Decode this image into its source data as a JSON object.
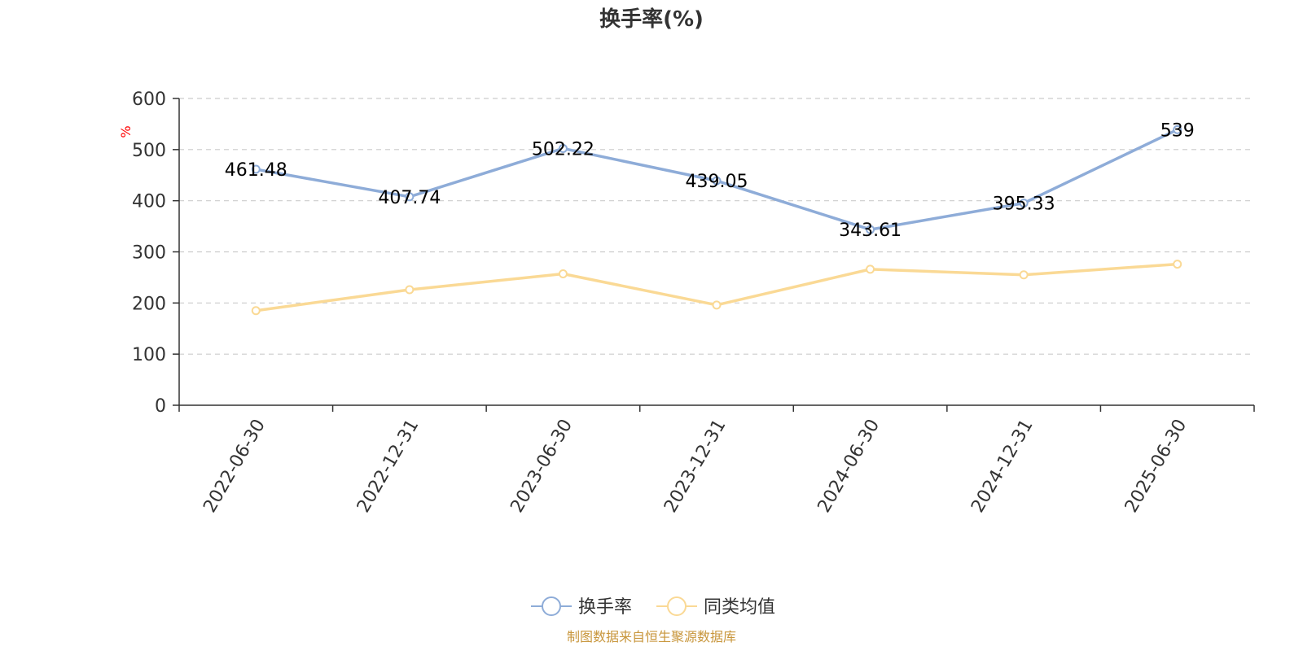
{
  "chart_data": {
    "type": "line",
    "title": "换手率(%)",
    "ylabel": "%",
    "xlabel": "",
    "ylim": [
      0,
      600
    ],
    "yticks": [
      0,
      100,
      200,
      300,
      400,
      500,
      600
    ],
    "categories": [
      "2022-06-30",
      "2022-12-31",
      "2023-06-30",
      "2023-12-31",
      "2024-06-30",
      "2024-12-31",
      "2025-06-30"
    ],
    "series": [
      {
        "name": "换手率",
        "color": "#8eacd8",
        "values": [
          461.48,
          407.74,
          502.22,
          439.05,
          343.61,
          395.33,
          539
        ],
        "labels": [
          "461.48",
          "407.74",
          "502.22",
          "439.05",
          "343.61",
          "395.33",
          "539"
        ]
      },
      {
        "name": "同类均值",
        "color": "#fad995",
        "values": [
          185,
          226,
          257,
          196,
          266,
          255,
          276
        ]
      }
    ],
    "grid": true,
    "legend_position": "bottom-center"
  },
  "source_note": "制图数据来自恒生聚源数据库"
}
